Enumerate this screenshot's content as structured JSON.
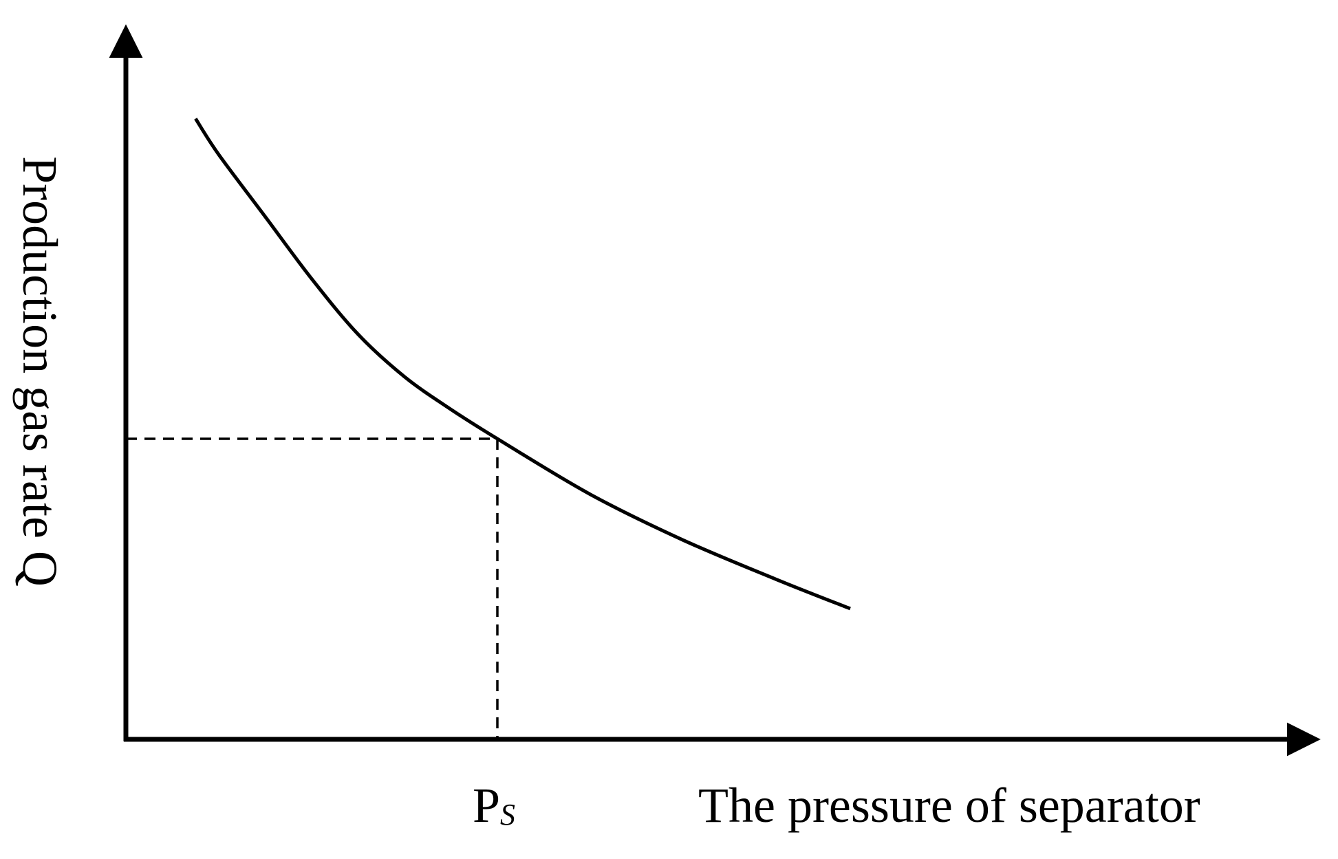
{
  "chart_data": {
    "type": "line",
    "title": "",
    "xlabel": "The pressure of separator",
    "ylabel": "Production gas rate Q",
    "x_ticks": [
      {
        "main": "P",
        "sub": "S",
        "at": 0.4
      }
    ],
    "xlim": [
      0,
      1
    ],
    "ylim": [
      0,
      1
    ],
    "grid": false,
    "legend": "none",
    "series": [
      {
        "values": [
          {
            "x": 0.075,
            "y": 0.95
          },
          {
            "x": 0.1,
            "y": 0.895
          },
          {
            "x": 0.15,
            "y": 0.8
          },
          {
            "x": 0.2,
            "y": 0.705
          },
          {
            "x": 0.25,
            "y": 0.62
          },
          {
            "x": 0.3,
            "y": 0.555
          },
          {
            "x": 0.35,
            "y": 0.505
          },
          {
            "x": 0.4,
            "y": 0.46
          },
          {
            "x": 0.5,
            "y": 0.375
          },
          {
            "x": 0.6,
            "y": 0.305
          },
          {
            "x": 0.7,
            "y": 0.245
          },
          {
            "x": 0.78,
            "y": 0.2
          }
        ]
      }
    ],
    "reference_point": {
      "x": 0.4,
      "y": 0.46
    }
  }
}
